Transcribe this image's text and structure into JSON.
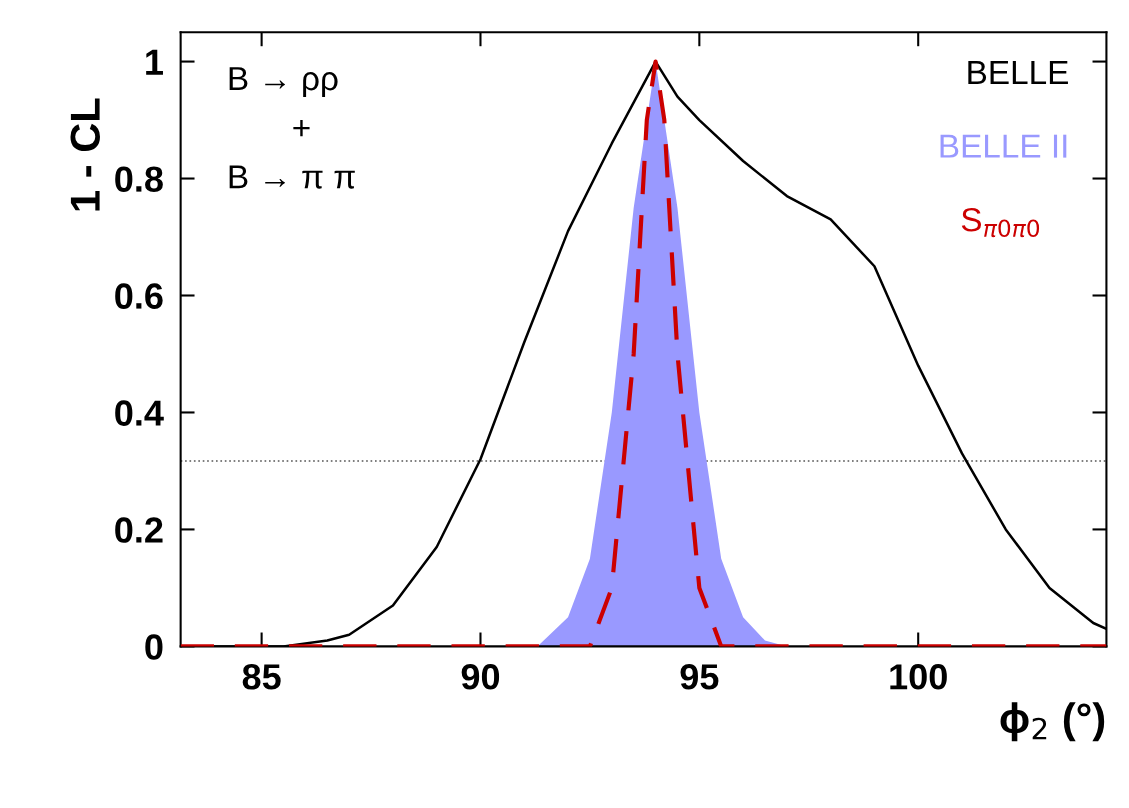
{
  "chart_data": {
    "type": "line",
    "xlabel": "ϕ$_{2}$ (°)",
    "ylabel": "1 - CL",
    "xlim": [
      83.15,
      104.3
    ],
    "ylim": [
      0,
      1.05
    ],
    "xticks": [
      85,
      90,
      95,
      100
    ],
    "yticks": [
      0,
      0.2,
      0.4,
      0.6,
      0.8,
      1
    ],
    "series": [
      {
        "name": "BELLE",
        "color": "#000000",
        "line_style": "solid",
        "x": [
          83.15,
          85.5,
          86.5,
          87,
          88,
          89,
          90,
          91,
          92,
          93,
          94,
          94.5,
          95,
          96,
          97,
          98,
          99,
          100,
          101,
          102,
          103,
          104,
          104.3
        ],
        "values": [
          0,
          0,
          0.01,
          0.02,
          0.07,
          0.17,
          0.32,
          0.52,
          0.71,
          0.86,
          1.0,
          0.94,
          0.9,
          0.83,
          0.77,
          0.73,
          0.65,
          0.48,
          0.33,
          0.2,
          0.1,
          0.04,
          0.03
        ]
      },
      {
        "name": "BELLE II",
        "color": "#9999ff",
        "type": "area",
        "x": [
          91.3,
          92,
          92.5,
          93,
          93.5,
          94,
          94.5,
          95,
          95.5,
          96,
          96.5,
          97
        ],
        "values": [
          0,
          0.05,
          0.15,
          0.4,
          0.75,
          1.0,
          0.75,
          0.4,
          0.15,
          0.05,
          0.01,
          0
        ]
      },
      {
        "name": "S$_{π0π0}$",
        "color": "#cc0000",
        "line_style": "dashed",
        "x": [
          83.15,
          92.5,
          93,
          93.5,
          93.8,
          94,
          94.2,
          94.5,
          95,
          95.5,
          104.3
        ],
        "values": [
          0,
          0,
          0.1,
          0.5,
          0.9,
          1.0,
          0.9,
          0.5,
          0.1,
          0,
          0
        ]
      }
    ],
    "ref_lines": [
      {
        "axis": "y",
        "value": 0.317,
        "line_style": "dotted",
        "color": "#555555"
      }
    ],
    "annotations": [
      "B → ρρ",
      "+",
      "B → π π"
    ],
    "legend": "top right",
    "grid": false
  }
}
